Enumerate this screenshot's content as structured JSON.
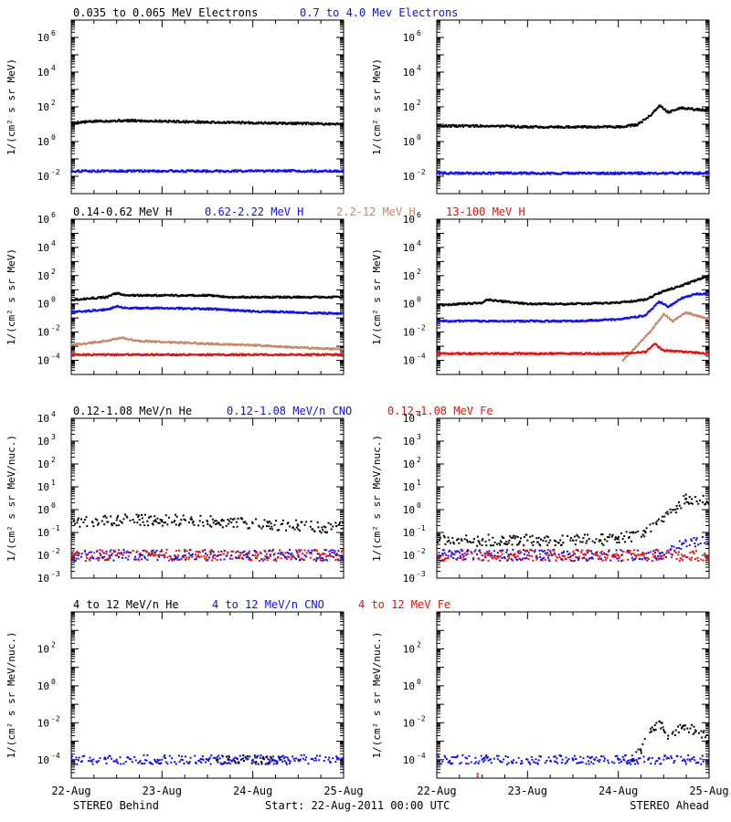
{
  "colors": {
    "black": "#000000",
    "blue": "#1010e8",
    "tan": "#c8876a",
    "red": "#e81010"
  },
  "rows": [
    {
      "legend": [
        {
          "text": "0.035 to 0.065 MeV Electrons",
          "color": "#000000"
        },
        {
          "text": "0.7 to 4.0 Mev Electrons",
          "color": "#1010e8"
        }
      ],
      "ylabel": "1/(cm² s sr MeV)",
      "ylim_exp": [
        -3,
        7
      ],
      "yticks": [
        -2,
        0,
        2,
        4,
        6
      ],
      "tick_style": "power"
    },
    {
      "legend": [
        {
          "text": "0.14-0.62 MeV H",
          "color": "#000000"
        },
        {
          "text": "0.62-2.22 MeV H",
          "color": "#1010e8"
        },
        {
          "text": "2.2-12 MeV H",
          "color": "#c8876a"
        },
        {
          "text": "13-100 MeV H",
          "color": "#e81010"
        }
      ],
      "ylabel": "1/(cm² s sr MeV)",
      "ylim_exp": [
        -5,
        6
      ],
      "yticks": [
        -4,
        -2,
        0,
        2,
        4,
        6
      ],
      "tick_style": "power"
    },
    {
      "legend": [
        {
          "text": "0.12-1.08 MeV/n He",
          "color": "#000000"
        },
        {
          "text": "0.12-1.08 MeV/n CNO",
          "color": "#1010e8"
        },
        {
          "text": "0.12-1.08 MeV Fe",
          "color": "#e81010"
        }
      ],
      "ylabel": "1/(cm² s sr MeV/nuc.)",
      "ylim_exp": [
        -3,
        4
      ],
      "yticks": [
        -3,
        -2,
        -1,
        0,
        1,
        2,
        3,
        4
      ],
      "tick_style": "power"
    },
    {
      "legend": [
        {
          "text": "4 to 12 MeV/n He",
          "color": "#000000"
        },
        {
          "text": "4 to 12 MeV/n CNO",
          "color": "#1010e8"
        },
        {
          "text": "4 to 12 MeV Fe",
          "color": "#e81010"
        }
      ],
      "ylabel": "1/(cm² s sr MeV/nuc.)",
      "ylim_exp": [
        -5,
        4
      ],
      "yticks": [
        -4,
        -2,
        0,
        2
      ],
      "tick_style": "power"
    }
  ],
  "x_ticks": [
    "22-Aug",
    "23-Aug",
    "24-Aug",
    "25-Aug"
  ],
  "footer": {
    "left": "STEREO Behind",
    "center": "Start: 22-Aug-2011 00:00 UTC",
    "right": "STEREO Ahead"
  },
  "chart_data": [
    {
      "type": "scatter",
      "panel": "behind-electrons",
      "log_y": true,
      "x_range_days": [
        0,
        3
      ],
      "series": [
        {
          "name": "0.035 to 0.065 MeV Electrons",
          "color": "#000000",
          "x": [
            0,
            0.3,
            0.6,
            1.0,
            1.5,
            2.0,
            2.5,
            3.0
          ],
          "y": [
            12,
            15,
            16,
            15,
            13,
            12,
            11,
            10
          ]
        },
        {
          "name": "0.7 to 4.0 Mev Electrons",
          "color": "#1010e8",
          "x": [
            0,
            0.5,
            1.0,
            1.5,
            2.0,
            2.5,
            3.0
          ],
          "y": [
            0.02,
            0.02,
            0.02,
            0.02,
            0.02,
            0.02,
            0.02
          ]
        }
      ]
    },
    {
      "type": "scatter",
      "panel": "ahead-electrons",
      "log_y": true,
      "x_range_days": [
        0,
        3
      ],
      "series": [
        {
          "name": "0.035 to 0.065 MeV Electrons",
          "color": "#000000",
          "x": [
            0,
            0.5,
            1.0,
            1.5,
            2.0,
            2.2,
            2.35,
            2.45,
            2.55,
            2.7,
            2.85,
            3.0
          ],
          "y": [
            8,
            8,
            7,
            7,
            7,
            9,
            30,
            120,
            50,
            90,
            70,
            65
          ]
        },
        {
          "name": "0.7 to 4.0 Mev Electrons",
          "color": "#1010e8",
          "x": [
            0,
            0.5,
            1.0,
            1.5,
            2.0,
            2.5,
            3.0
          ],
          "y": [
            0.015,
            0.015,
            0.015,
            0.015,
            0.015,
            0.015,
            0.015
          ]
        }
      ]
    },
    {
      "type": "scatter",
      "panel": "behind-protons",
      "log_y": true,
      "x_range_days": [
        0,
        3
      ],
      "series": [
        {
          "name": "0.14-0.62 MeV H",
          "color": "#000000",
          "x": [
            0,
            0.4,
            0.5,
            0.6,
            1.0,
            1.5,
            1.75,
            2.0,
            2.5,
            3.0
          ],
          "y": [
            2,
            3,
            6,
            4,
            4,
            4,
            3,
            3,
            3,
            3
          ]
        },
        {
          "name": "0.62-2.22 MeV H",
          "color": "#1010e8",
          "x": [
            0,
            0.4,
            0.5,
            0.6,
            1.0,
            1.5,
            2.0,
            2.5,
            3.0
          ],
          "y": [
            0.25,
            0.4,
            0.7,
            0.5,
            0.5,
            0.45,
            0.3,
            0.25,
            0.2
          ]
        },
        {
          "name": "2.2-12 MeV H",
          "color": "#c8876a",
          "x": [
            0,
            0.4,
            0.55,
            0.7,
            1.0,
            1.5,
            2.0,
            2.5,
            3.0
          ],
          "y": [
            0.0012,
            0.0025,
            0.004,
            0.0025,
            0.002,
            0.0015,
            0.0012,
            0.0008,
            0.0006
          ]
        },
        {
          "name": "13-100 MeV H",
          "color": "#e81010",
          "x": [
            0,
            0.5,
            1.0,
            1.5,
            2.0,
            2.5,
            3.0
          ],
          "y": [
            0.00025,
            0.00025,
            0.00025,
            0.00025,
            0.00025,
            0.00025,
            0.00025
          ]
        }
      ]
    },
    {
      "type": "scatter",
      "panel": "ahead-protons",
      "log_y": true,
      "x_range_days": [
        0,
        3
      ],
      "series": [
        {
          "name": "0.14-0.62 MeV H",
          "color": "#000000",
          "x": [
            0,
            0.5,
            0.55,
            1.0,
            1.5,
            2.0,
            2.3,
            2.5,
            2.7,
            2.9,
            3.0
          ],
          "y": [
            0.8,
            1.2,
            2,
            1,
            1,
            1.2,
            2,
            8,
            20,
            60,
            100
          ]
        },
        {
          "name": "0.62-2.22 MeV H",
          "color": "#1010e8",
          "x": [
            0,
            0.5,
            1.0,
            1.5,
            2.0,
            2.3,
            2.45,
            2.55,
            2.7,
            2.85,
            3.0
          ],
          "y": [
            0.06,
            0.06,
            0.06,
            0.06,
            0.08,
            0.15,
            1.5,
            0.6,
            2.5,
            5,
            5
          ]
        },
        {
          "name": "2.2-12 MeV H",
          "color": "#c8876a",
          "x": [
            2.05,
            2.2,
            2.35,
            2.5,
            2.6,
            2.75,
            2.9,
            3.0
          ],
          "y": [
            0.0001,
            0.001,
            0.01,
            0.2,
            0.06,
            0.25,
            0.12,
            0.08
          ]
        },
        {
          "name": "13-100 MeV H",
          "color": "#e81010",
          "x": [
            0,
            0.5,
            1.0,
            1.5,
            2.0,
            2.3,
            2.4,
            2.5,
            2.7,
            3.0
          ],
          "y": [
            0.0003,
            0.0003,
            0.0003,
            0.0003,
            0.0003,
            0.0004,
            0.0015,
            0.0005,
            0.0004,
            0.0003
          ]
        }
      ]
    },
    {
      "type": "scatter",
      "panel": "behind-suprathermal",
      "log_y": true,
      "x_range_days": [
        0,
        3
      ],
      "series": [
        {
          "name": "0.12-1.08 MeV/n He",
          "color": "#000000",
          "x": [
            0,
            0.5,
            1.0,
            1.5,
            2.0,
            2.5,
            3.0
          ],
          "y": [
            0.25,
            0.35,
            0.35,
            0.3,
            0.25,
            0.2,
            0.15
          ]
        },
        {
          "name": "0.12-1.08 MeV/n CNO",
          "color": "#1010e8",
          "x": [
            0,
            0.5,
            1.0,
            1.5,
            2.0,
            2.5,
            3.0
          ],
          "y": [
            0.01,
            0.01,
            0.01,
            0.01,
            0.01,
            0.01,
            0.01
          ]
        },
        {
          "name": "0.12-1.08 MeV Fe",
          "color": "#e81010",
          "x": [
            0,
            0.5,
            1.0,
            1.5,
            2.0,
            2.5,
            3.0
          ],
          "y": [
            0.01,
            0.01,
            0.01,
            0.01,
            0.01,
            0.01,
            0.01
          ]
        }
      ]
    },
    {
      "type": "scatter",
      "panel": "ahead-suprathermal",
      "log_y": true,
      "x_range_days": [
        0,
        3
      ],
      "series": [
        {
          "name": "0.12-1.08 MeV/n He",
          "color": "#000000",
          "x": [
            0,
            0.5,
            1.0,
            1.5,
            2.0,
            2.3,
            2.5,
            2.6,
            2.75,
            2.9,
            3.0
          ],
          "y": [
            0.045,
            0.045,
            0.045,
            0.045,
            0.05,
            0.1,
            0.3,
            1,
            3,
            2.5,
            2
          ]
        },
        {
          "name": "0.12-1.08 MeV/n CNO",
          "color": "#1010e8",
          "x": [
            0,
            0.5,
            1.0,
            1.5,
            2.0,
            2.5,
            2.7,
            3.0
          ],
          "y": [
            0.01,
            0.01,
            0.01,
            0.01,
            0.01,
            0.01,
            0.03,
            0.05
          ]
        },
        {
          "name": "0.12-1.08 MeV Fe",
          "color": "#e81010",
          "x": [
            0,
            0.5,
            1.0,
            1.5,
            2.0,
            2.5,
            3.0
          ],
          "y": [
            0.01,
            0.01,
            0.01,
            0.01,
            0.01,
            0.01,
            0.01
          ]
        }
      ]
    },
    {
      "type": "scatter",
      "panel": "behind-energetic",
      "log_y": true,
      "x_range_days": [
        0,
        3
      ],
      "series": [
        {
          "name": "4 to 12 MeV/n He",
          "color": "#000000",
          "x": [
            1.6,
            2.3
          ],
          "y": [
            0.0001,
            0.0001
          ]
        },
        {
          "name": "4 to 12 MeV/n CNO",
          "color": "#1010e8",
          "x": [
            0,
            0.5,
            1.0,
            1.5,
            2.0,
            2.5,
            3.0
          ],
          "y": [
            0.0001,
            0.0001,
            0.0001,
            0.0001,
            0.0001,
            0.0001,
            0.0001
          ]
        },
        {
          "name": "4 to 12 MeV Fe",
          "color": "#e81010",
          "x": [],
          "y": []
        }
      ]
    },
    {
      "type": "scatter",
      "panel": "ahead-energetic",
      "log_y": true,
      "x_range_days": [
        0,
        3
      ],
      "series": [
        {
          "name": "4 to 12 MeV/n He",
          "color": "#000000",
          "x": [
            2.15,
            2.25,
            2.35,
            2.45,
            2.55,
            2.7,
            2.85,
            3.0
          ],
          "y": [
            0.0001,
            0.0003,
            0.003,
            0.012,
            0.002,
            0.005,
            0.004,
            0.0015
          ]
        },
        {
          "name": "4 to 12 MeV/n CNO",
          "color": "#1010e8",
          "x": [
            0,
            0.5,
            1.0,
            1.5,
            2.0,
            2.5,
            3.0
          ],
          "y": [
            0.0001,
            0.0001,
            0.0001,
            0.0001,
            0.0001,
            0.0001,
            0.0001
          ]
        },
        {
          "name": "4 to 12 MeV Fe",
          "color": "#e81010",
          "x": [
            0.45
          ],
          "y": [
            1e-05
          ]
        }
      ]
    }
  ]
}
